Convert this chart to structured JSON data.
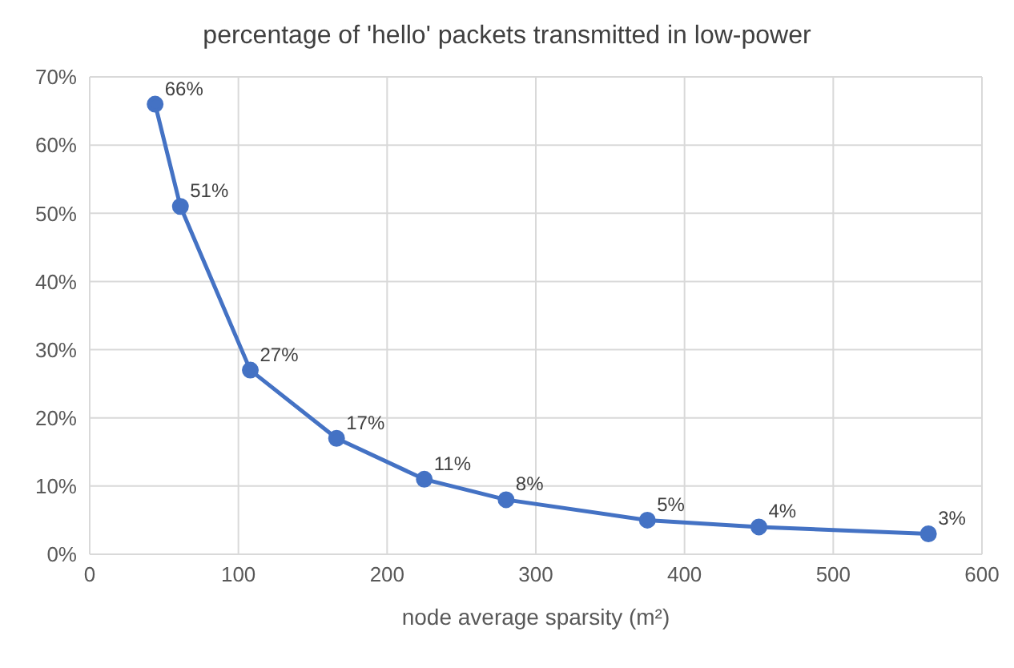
{
  "chart_data": {
    "type": "line",
    "title": "percentage of 'hello' packets transmitted in low-power",
    "xlabel": "node average sparsity (m²)",
    "x": [
      44,
      61,
      108,
      166,
      225,
      280,
      375,
      450,
      564
    ],
    "series": [
      {
        "color": "#4472c4",
        "values": [
          66,
          51,
          27,
          17,
          11,
          8,
          5,
          4,
          3
        ],
        "value_labels": [
          "66%",
          "51%",
          "27%",
          "17%",
          "11%",
          "8%",
          "5%",
          "4%",
          "3%"
        ]
      }
    ],
    "xlim": [
      0,
      600
    ],
    "xticks": [
      0,
      100,
      200,
      300,
      400,
      500,
      600
    ],
    "ylim": [
      0,
      70
    ],
    "yticks": [
      {
        "value": 0,
        "label": "0%"
      },
      {
        "value": 10,
        "label": "10%"
      },
      {
        "value": 20,
        "label": "20%"
      },
      {
        "value": 30,
        "label": "30%"
      },
      {
        "value": 40,
        "label": "40%"
      },
      {
        "value": 50,
        "label": "50%"
      },
      {
        "value": 60,
        "label": "60%"
      },
      {
        "value": 70,
        "label": "70%"
      }
    ],
    "grid": true,
    "marker": "circle",
    "line_style": "solid"
  }
}
